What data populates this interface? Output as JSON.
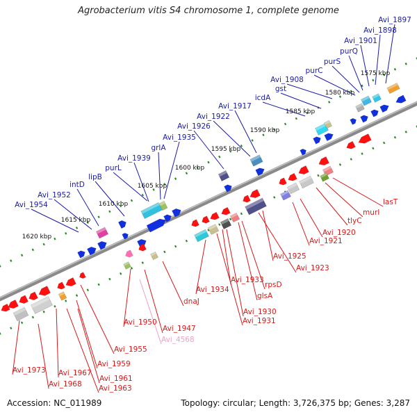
{
  "title": "Agrobacterium vitis S4 chromosome 1, complete genome",
  "footer": {
    "accession": "Accession: NC_011989",
    "info": "Topology: circular; Length: 3,726,375 bp; Genes: 3,287"
  },
  "colors": {
    "top_labels": "#1a1aa8",
    "bottom_labels": "#d81818",
    "faded_label": "#f0a0c8",
    "backbone": "#8a8a8a",
    "tick_dots": "#2a8a2a"
  },
  "kbp_ticks": [
    "1575 kbp",
    "1580 kbp",
    "1585 kbp",
    "1590 kbp",
    "1595 kbp",
    "1600 kbp",
    "1605 kbp",
    "1610 kbp",
    "1615 kbp",
    "1620 kbp"
  ],
  "top_genes": [
    "Avi_1897",
    "Avi_1898",
    "Avi_1901",
    "purQ",
    "purS",
    "purC",
    "Avi_1908",
    "gst",
    "icdA",
    "Avi_1917",
    "Avi_1922",
    "Avi_1926",
    "Avi_1935",
    "grlA",
    "Avi_1939",
    "purL",
    "lipB",
    "intD",
    "Avi_1952",
    "Avi_1954"
  ],
  "bottom_genes": [
    "lasT",
    "murI",
    "tlyC",
    "Avi_1920",
    "Avi_1921",
    "Avi_1925",
    "Avi_1923",
    "rpsD",
    "Avi_1933",
    "glsA",
    "Avi_1934",
    "Avi_1930",
    "Avi_1931",
    "dnaJ",
    "Avi_1947",
    "Avi_4568",
    "Avi_1950",
    "Avi_1955",
    "Avi_1959",
    "Avi_1967",
    "Avi_1961",
    "Avi_1963",
    "Avi_1973",
    "Avi_1968"
  ]
}
